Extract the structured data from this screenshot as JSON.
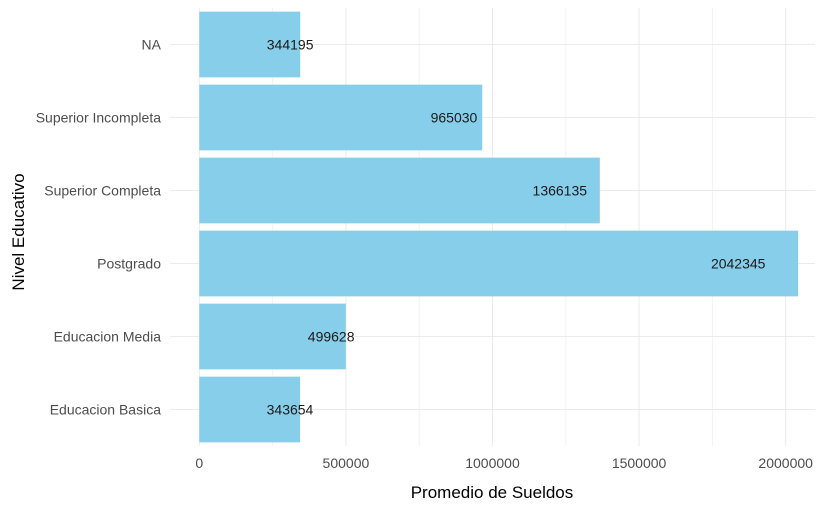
{
  "chart_data": {
    "type": "bar",
    "orientation": "horizontal",
    "categories": [
      "Educacion Basica",
      "Educacion Media",
      "Postgrado",
      "Superior Completa",
      "Superior Incompleta",
      "NA"
    ],
    "values": [
      343654,
      499628,
      2042345,
      1366135,
      965030,
      344195
    ],
    "value_labels": [
      "343654",
      "499628",
      "2042345",
      "1366135",
      "965030",
      "344195"
    ],
    "xlabel": "Promedio de Sueldos",
    "ylabel": "Nivel Educativo",
    "xlim": [
      -100000,
      2100000
    ],
    "xticks": [
      0,
      500000,
      1000000,
      1500000,
      2000000
    ],
    "xtick_labels": [
      "0",
      "500000",
      "1000000",
      "1500000",
      "2000000"
    ],
    "grid": true,
    "legend": "none",
    "bar_color": "#87ceeb",
    "grid_color": "#ebebeb",
    "background": "#ffffff"
  }
}
